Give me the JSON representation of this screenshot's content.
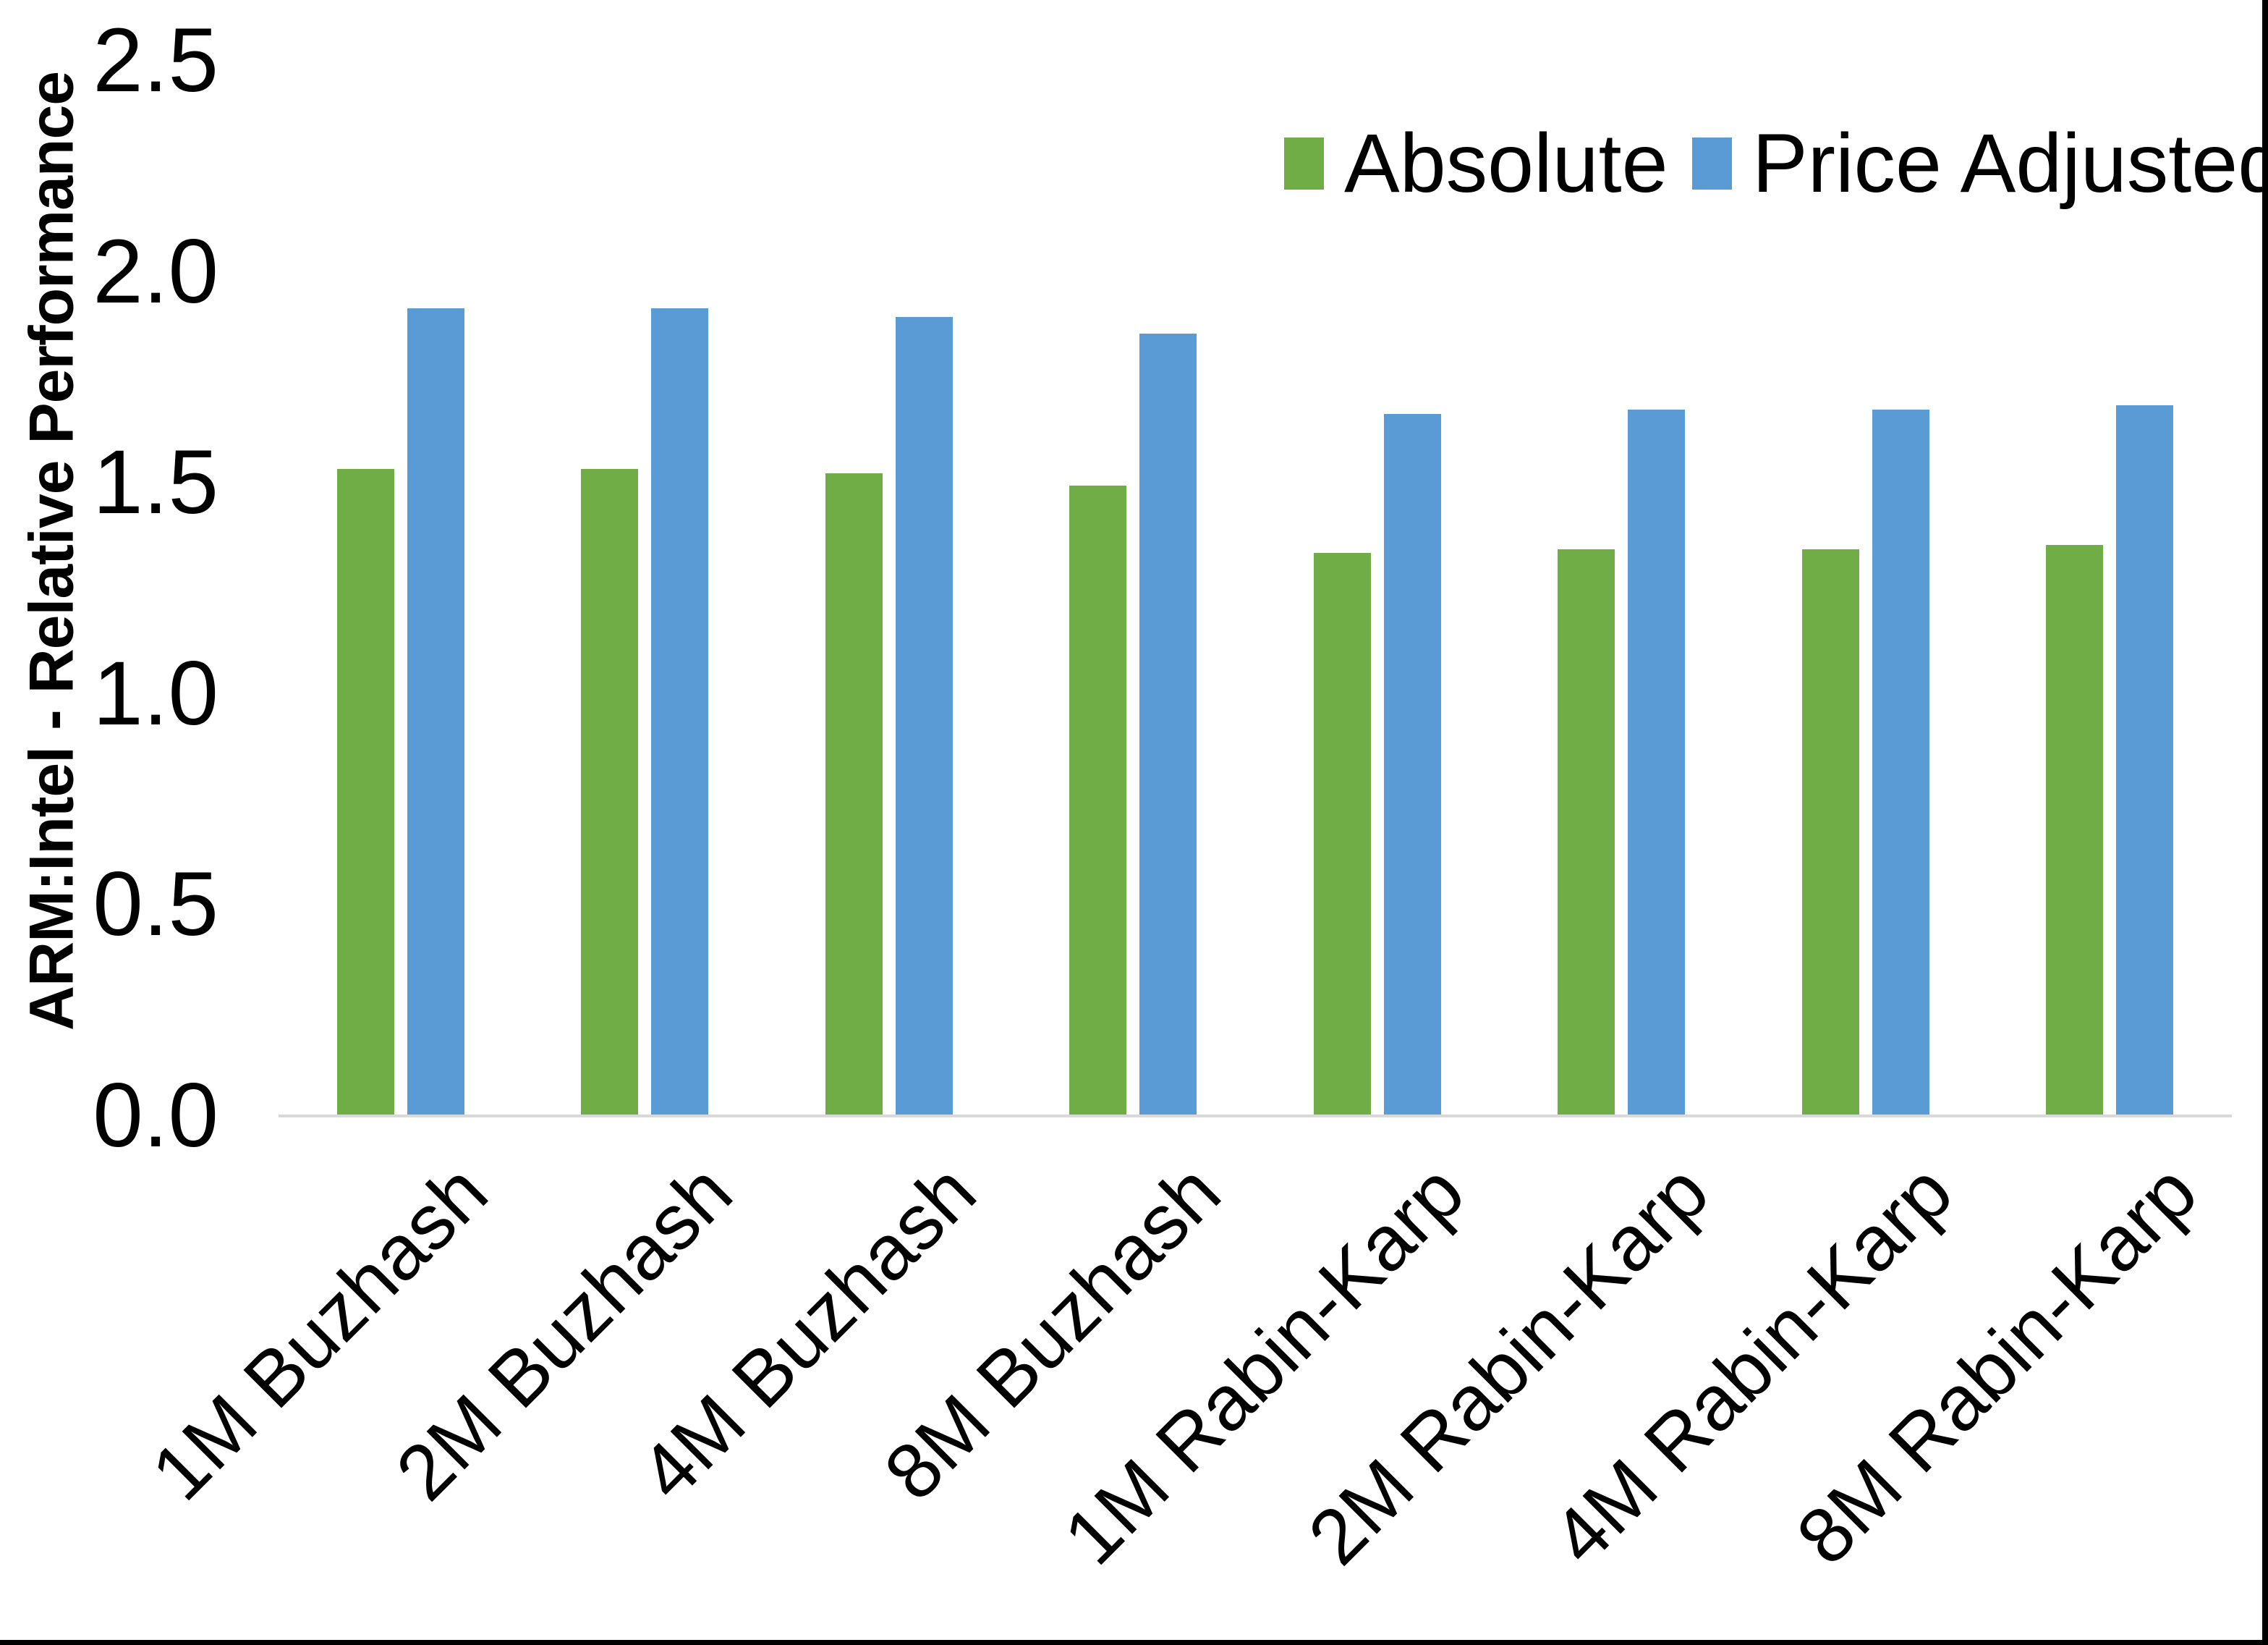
{
  "chart_data": {
    "type": "bar",
    "title": "",
    "xlabel": "",
    "ylabel": "ARM:Intel - Relative Performance",
    "ylim": [
      0,
      2.5
    ],
    "ytick_step": 0.5,
    "ytick_labels": [
      "0.0",
      "0.5",
      "1.0",
      "1.5",
      "2.0",
      "2.5"
    ],
    "grid": false,
    "legend_position": "top-right-inside",
    "categories": [
      "1M Buzhash",
      "2M Buzhash",
      "4M Buzhash",
      "8M Buzhash",
      "1M Rabin-Karp",
      "2M Rabin-Karp",
      "4M Rabin-Karp",
      "8M Rabin-Karp"
    ],
    "series": [
      {
        "name": "Absolute",
        "color": "#70AD47",
        "values": [
          1.53,
          1.53,
          1.52,
          1.49,
          1.33,
          1.34,
          1.34,
          1.35
        ]
      },
      {
        "name": "Price Adjusted",
        "color": "#5B9BD5",
        "values": [
          1.91,
          1.91,
          1.89,
          1.85,
          1.66,
          1.67,
          1.67,
          1.68
        ]
      }
    ],
    "colors": {
      "axis_line": "#D9D9D9",
      "text": "#000000",
      "background": "#FFFFFF",
      "frame_border": "#000000"
    }
  }
}
